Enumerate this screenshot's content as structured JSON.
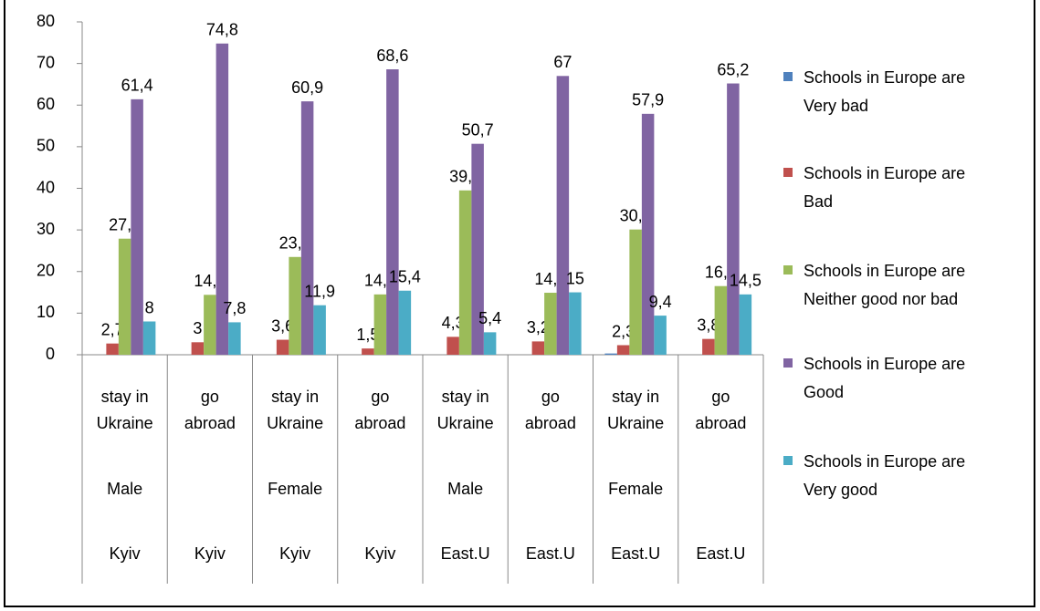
{
  "chart_data": {
    "type": "bar",
    "categories": [
      "stay in Ukraine",
      "go abroad",
      "stay in Ukraine",
      "go abroad",
      "stay in Ukraine",
      "go abroad",
      "stay in Ukraine",
      "go abroad"
    ],
    "gender": [
      "Male",
      null,
      "Female",
      null,
      "Male",
      null,
      "Female",
      null
    ],
    "region": [
      "Kyiv",
      "Kyiv",
      "Kyiv",
      "Kyiv",
      "East.U",
      "East.U",
      "East.U",
      "East.U"
    ],
    "series": [
      {
        "name": "Schools in Europe are Very bad",
        "color": "#4f81bd",
        "values": [
          0,
          0,
          0,
          0,
          0,
          0,
          0.3,
          0
        ]
      },
      {
        "name": "Schools in Europe are Bad",
        "color": "#c0504d",
        "values": [
          2.7,
          3,
          3.6,
          1.5,
          4.3,
          3.2,
          2.3,
          3.8
        ],
        "value_labels": [
          "2,7",
          "3",
          "3,6",
          "1,5",
          "4,3",
          "3,2",
          "2,3",
          "3,8"
        ]
      },
      {
        "name": "Schools in Europe are Neither good nor bad",
        "color": "#9bbb59",
        "values": [
          27.9,
          14.4,
          23.5,
          14.5,
          39.5,
          14.9,
          30.1,
          16.5
        ],
        "value_labels": [
          "27,9",
          "14,4",
          "23,5",
          "14,5",
          "39,5",
          "14,9",
          "30,1",
          "16,5"
        ]
      },
      {
        "name": "Schools in Europe are Good",
        "color": "#8064a2",
        "values": [
          61.4,
          74.8,
          60.9,
          68.6,
          50.7,
          67,
          57.9,
          65.2
        ],
        "value_labels": [
          "61,4",
          "74,8",
          "60,9",
          "68,6",
          "50,7",
          "67",
          "57,9",
          "65,2"
        ]
      },
      {
        "name": "Schools in Europe are Very good",
        "color": "#4bacc6",
        "values": [
          8,
          7.8,
          11.9,
          15.4,
          5.4,
          15,
          9.4,
          14.5
        ],
        "value_labels": [
          "8",
          "7,8",
          "11,9",
          "15,4",
          "5,4",
          "15",
          "9,4",
          "14,5"
        ]
      }
    ],
    "ylim": [
      0,
      80
    ],
    "yticks": [
      0,
      10,
      20,
      30,
      40,
      50,
      60,
      70,
      80
    ],
    "legend": "right"
  }
}
